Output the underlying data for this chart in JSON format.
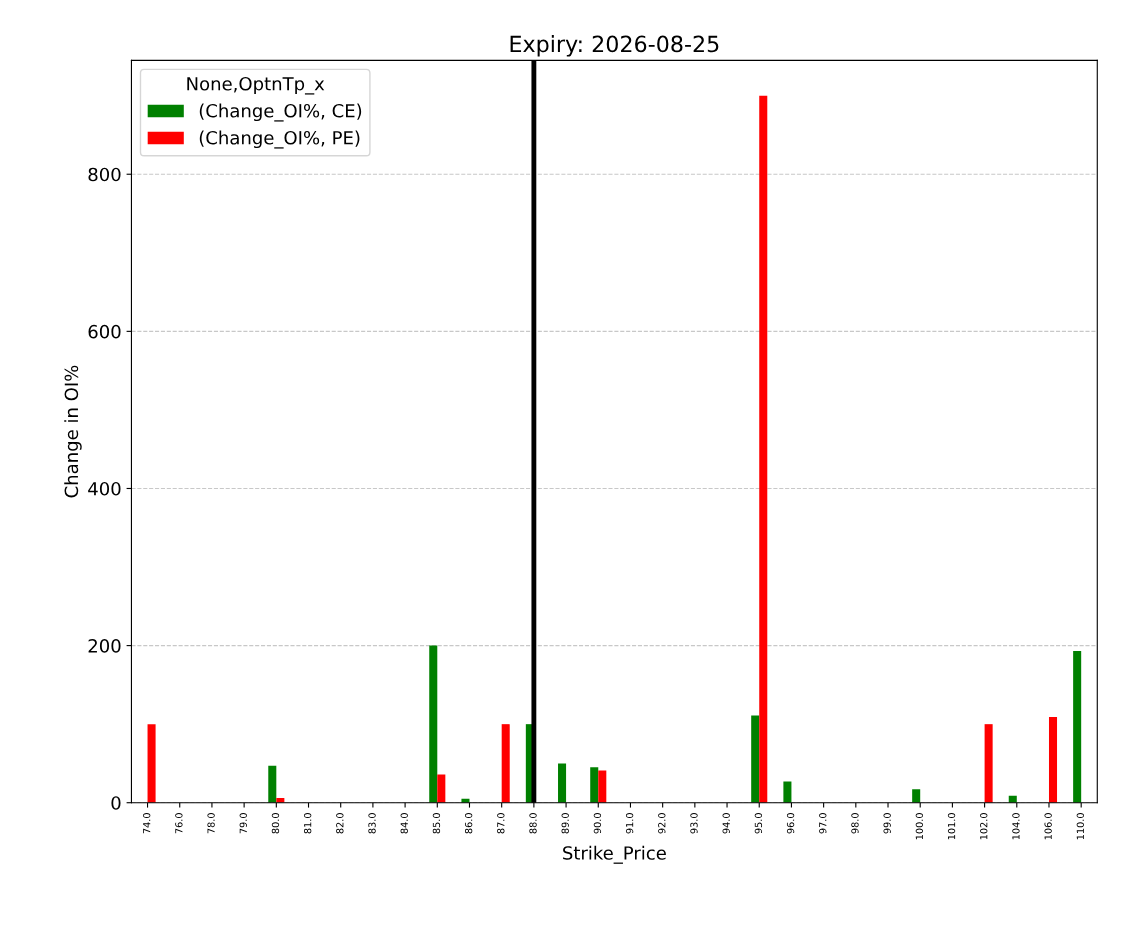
{
  "chart_data": {
    "type": "bar",
    "title": "Expiry: 2026-08-25",
    "xlabel": "Strike_Price",
    "ylabel": "Change in OI%",
    "legend_title": "None,OptnTp_x",
    "categories": [
      "74.0",
      "76.0",
      "78.0",
      "79.0",
      "80.0",
      "81.0",
      "82.0",
      "83.0",
      "84.0",
      "85.0",
      "86.0",
      "87.0",
      "88.0",
      "89.0",
      "90.0",
      "91.0",
      "92.0",
      "93.0",
      "94.0",
      "95.0",
      "96.0",
      "97.0",
      "98.0",
      "99.0",
      "100.0",
      "101.0",
      "102.0",
      "104.0",
      "106.0",
      "110.0"
    ],
    "series": [
      {
        "name": "(Change_OI%, CE)",
        "color": "#008000",
        "values": [
          0,
          0,
          0,
          0,
          47,
          0,
          0,
          0,
          0,
          200,
          5,
          0,
          100,
          50,
          45,
          0,
          0,
          0,
          0,
          111,
          27,
          0,
          0,
          0,
          17,
          0,
          0,
          9,
          0,
          193
        ]
      },
      {
        "name": "(Change_OI%, PE)",
        "color": "#ff0000",
        "values": [
          100,
          0,
          0,
          0,
          6,
          0,
          0,
          0,
          0,
          36,
          0,
          100,
          0,
          0,
          41,
          0,
          0,
          0,
          0,
          900,
          0,
          0,
          0,
          0,
          0,
          0,
          100,
          0,
          109,
          0
        ]
      }
    ],
    "ylim": [
      0,
      945
    ],
    "yticks": [
      0,
      200,
      400,
      600,
      800
    ],
    "grid": "y",
    "legend": "top left",
    "ref_lines": [
      {
        "axis": "x",
        "value": "88.0",
        "color": "#000000",
        "line_style": "solid"
      }
    ]
  }
}
